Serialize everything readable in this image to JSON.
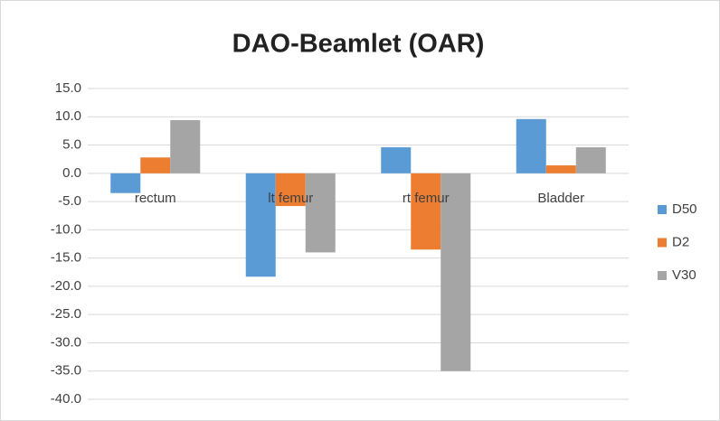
{
  "chart_data": {
    "type": "bar",
    "title": "DAO-Beamlet (OAR)",
    "categories": [
      "rectum",
      "lt femur",
      "rt femur",
      "Bladder"
    ],
    "series": [
      {
        "name": "D50",
        "color": "#5b9bd5",
        "values": [
          -3.5,
          -18.3,
          4.6,
          9.6
        ]
      },
      {
        "name": "D2",
        "color": "#ed7d31",
        "values": [
          2.8,
          -5.8,
          -13.5,
          1.4
        ]
      },
      {
        "name": "V30",
        "color": "#a5a5a5",
        "values": [
          9.4,
          -14.0,
          -35.0,
          4.6
        ]
      }
    ],
    "ylim": [
      -40,
      15
    ],
    "yticks": [
      {
        "value": 15,
        "label": "15.0"
      },
      {
        "value": 10,
        "label": "10.0"
      },
      {
        "value": 5,
        "label": "5.0"
      },
      {
        "value": 0,
        "label": "0.0"
      },
      {
        "value": -5,
        "label": "-5.0"
      },
      {
        "value": -10,
        "label": "-10.0"
      },
      {
        "value": -15,
        "label": "-15.0"
      },
      {
        "value": -20,
        "label": "-20.0"
      },
      {
        "value": -25,
        "label": "-25.0"
      },
      {
        "value": -30,
        "label": "-30.0"
      },
      {
        "value": -35,
        "label": "-35.0"
      },
      {
        "value": -40,
        "label": "-40.0"
      }
    ],
    "grid": true,
    "legend": "right"
  }
}
